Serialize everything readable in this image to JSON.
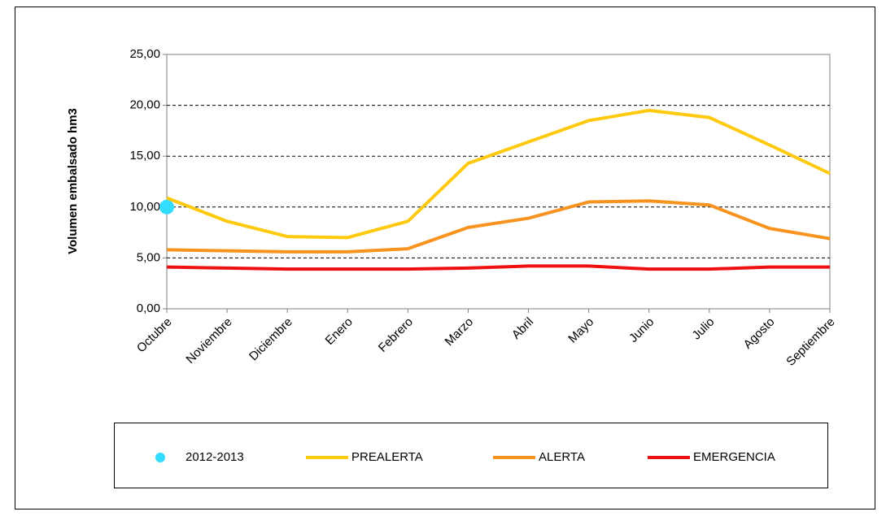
{
  "chart_data": {
    "type": "line",
    "y_label": "Volumen embalsado hm3",
    "categories": [
      "Octubre",
      "Noviembre",
      "Diciembre",
      "Enero",
      "Febrero",
      "Marzo",
      "Abril",
      "Mayo",
      "Junio",
      "Julio",
      "Agosto",
      "Septiembre"
    ],
    "series": [
      {
        "name": "2012-2013",
        "color": "#33ddff",
        "style": "marker",
        "values": [
          10.0,
          null,
          null,
          null,
          null,
          null,
          null,
          null,
          null,
          null,
          null,
          null
        ]
      },
      {
        "name": "PREALERTA",
        "color": "#ffc90e",
        "style": "line",
        "values": [
          10.9,
          8.6,
          7.1,
          7.0,
          8.6,
          14.3,
          16.4,
          18.5,
          19.5,
          18.8,
          16.1,
          13.3
        ]
      },
      {
        "name": "ALERTA",
        "color": "#f7931e",
        "style": "line",
        "values": [
          5.8,
          5.7,
          5.6,
          5.6,
          5.9,
          8.0,
          8.9,
          10.5,
          10.6,
          10.2,
          7.9,
          6.9
        ]
      },
      {
        "name": "EMERGENCIA",
        "color": "#ee1111",
        "style": "line",
        "values": [
          4.1,
          4.0,
          3.9,
          3.9,
          3.9,
          4.0,
          4.2,
          4.2,
          3.9,
          3.9,
          4.1,
          4.1
        ]
      }
    ],
    "ylim": [
      0,
      25
    ],
    "yticks": [
      {
        "value": 0,
        "label": "0,00"
      },
      {
        "value": 5,
        "label": "5,00"
      },
      {
        "value": 10,
        "label": "10,00"
      },
      {
        "value": 15,
        "label": "15,00"
      },
      {
        "value": 20,
        "label": "20,00"
      },
      {
        "value": 25,
        "label": "25,00"
      }
    ],
    "grid": true
  }
}
